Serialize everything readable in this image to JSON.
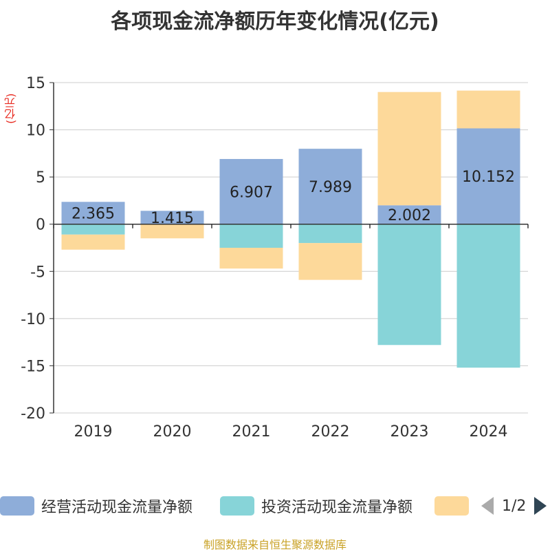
{
  "title": "各项现金流净额历年变化情况(亿元)",
  "unit_label": "(亿元)",
  "footer": "制图数据来自恒生聚源数据库",
  "pager": {
    "label": "1/2"
  },
  "legend": [
    {
      "name": "经营活动现金流量净额",
      "color": "#8eadd9"
    },
    {
      "name": "投资活动现金流量净额",
      "color": "#87d4d8"
    },
    {
      "name": "",
      "color": "#fdd99a"
    }
  ],
  "chart_data": {
    "type": "bar",
    "stacked": true,
    "categories": [
      "2019",
      "2020",
      "2021",
      "2022",
      "2023",
      "2024"
    ],
    "ylim": [
      -20,
      15
    ],
    "yticks": [
      15,
      10,
      5,
      0,
      -5,
      -10,
      -15,
      -20
    ],
    "series": [
      {
        "name": "经营活动现金流量净额",
        "color": "#8eadd9",
        "values": [
          2.365,
          1.415,
          6.907,
          7.989,
          2.002,
          10.152
        ],
        "labels": [
          "2.365",
          "1.415",
          "6.907",
          "7.989",
          "2.002",
          "10.152"
        ]
      },
      {
        "name": "投资活动现金流量净额",
        "color": "#87d4d8",
        "values": [
          -1.1,
          0,
          -2.5,
          -2.0,
          -12.8,
          -15.2
        ]
      },
      {
        "name": "",
        "color": "#fdd99a",
        "values": [
          -1.6,
          -1.5,
          -2.2,
          -3.9,
          12.0,
          4.0
        ]
      }
    ]
  }
}
